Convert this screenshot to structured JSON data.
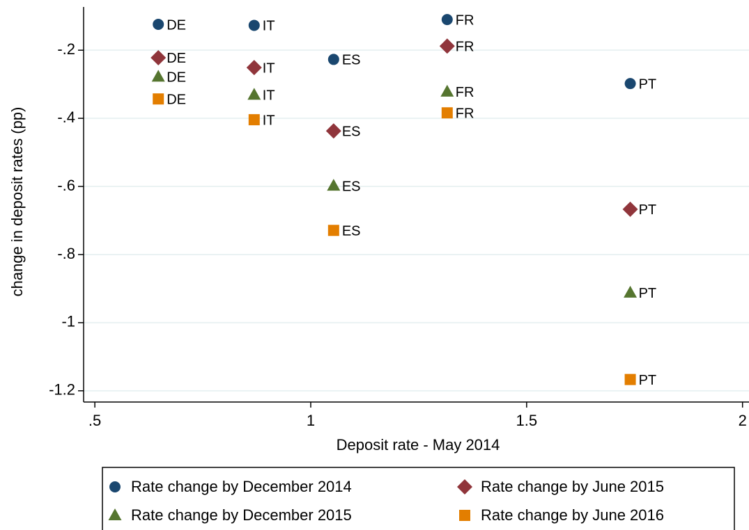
{
  "chart_data": {
    "type": "scatter",
    "x_label": "Deposit rate - May 2014",
    "y_label": "change in deposit rates (pp)",
    "xlim": [
      0.474,
      2.015
    ],
    "ylim": [
      -1.233,
      -0.073
    ],
    "xticks": [
      {
        "value": 0.5,
        "label": ".5"
      },
      1,
      1.5,
      2
    ],
    "yticks": [
      {
        "value": -0.2,
        "label": "-.2"
      },
      {
        "value": -0.4,
        "label": "-.4"
      },
      {
        "value": -0.6,
        "label": "-.6"
      },
      {
        "value": -0.8,
        "label": "-.8"
      },
      -1,
      -1.2
    ],
    "grid": true,
    "legend": "bottom",
    "series": [
      {
        "name": "Rate change by December 2014",
        "color": "#1a476f",
        "marker": "circle",
        "labels": [
          "DE",
          "IT",
          "ES",
          "FR",
          "PT"
        ],
        "x": [
          0.647,
          0.869,
          1.053,
          1.316,
          1.74
        ],
        "values": [
          -0.124,
          -0.127,
          -0.227,
          -0.11,
          -0.298
        ]
      },
      {
        "name": "Rate change by June 2015",
        "color": "#90353b",
        "marker": "diamond",
        "labels": [
          "DE",
          "IT",
          "ES",
          "FR",
          "PT"
        ],
        "x": [
          0.647,
          0.869,
          1.053,
          1.316,
          1.74
        ],
        "values": [
          -0.222,
          -0.251,
          -0.437,
          -0.188,
          -0.667
        ]
      },
      {
        "name": "Rate change by December 2015",
        "color": "#55752f",
        "marker": "triangle",
        "labels": [
          "DE",
          "IT",
          "ES",
          "FR",
          "PT"
        ],
        "x": [
          0.647,
          0.869,
          1.053,
          1.316,
          1.74
        ],
        "values": [
          -0.278,
          -0.331,
          -0.598,
          -0.322,
          -0.912
        ]
      },
      {
        "name": "Rate change by June 2016",
        "color": "#e37e00",
        "marker": "square",
        "labels": [
          "DE",
          "IT",
          "ES",
          "FR",
          "PT"
        ],
        "x": [
          0.647,
          0.869,
          1.053,
          1.316,
          1.74
        ],
        "values": [
          -0.343,
          -0.404,
          -0.729,
          -0.384,
          -1.167
        ]
      }
    ]
  }
}
